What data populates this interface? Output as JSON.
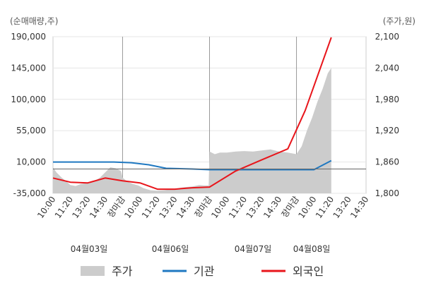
{
  "chart_data": {
    "type": "line",
    "units": {
      "left": "(순매매량,주)",
      "right": "(주가,원)"
    },
    "left_axis": {
      "ticks": [
        "190,000",
        "145,000",
        "100,000",
        "55,000",
        "10,000",
        "-35,000"
      ],
      "min": -35000,
      "max": 190000
    },
    "right_axis": {
      "ticks": [
        "2,100",
        "2,040",
        "1,980",
        "1,920",
        "1,860",
        "1,800"
      ],
      "min": 1800,
      "max": 2100
    },
    "x_labels": [
      {
        "label": "10:00",
        "market_close": false
      },
      {
        "label": "11:20",
        "market_close": false
      },
      {
        "label": "13:20",
        "market_close": false
      },
      {
        "label": "14:30",
        "market_close": false
      },
      {
        "label": "장마감",
        "market_close": true
      },
      {
        "label": "10:00",
        "market_close": false
      },
      {
        "label": "11:20",
        "market_close": false
      },
      {
        "label": "13:20",
        "market_close": false
      },
      {
        "label": "14:30",
        "market_close": false
      },
      {
        "label": "장마감",
        "market_close": true
      },
      {
        "label": "10:00",
        "market_close": false
      },
      {
        "label": "11:20",
        "market_close": false
      },
      {
        "label": "13:20",
        "market_close": false
      },
      {
        "label": "14:30",
        "market_close": false
      },
      {
        "label": "장마감",
        "market_close": true
      },
      {
        "label": "10:00",
        "market_close": false
      },
      {
        "label": "11:20",
        "market_close": false
      },
      {
        "label": "13:20",
        "market_close": false
      },
      {
        "label": "14:30",
        "market_close": false
      }
    ],
    "dates": [
      "04월03일",
      "04월06일",
      "04월07일",
      "04월08일"
    ],
    "grid": true,
    "legend": {
      "position": "bottom"
    },
    "series": [
      {
        "name": "주가",
        "kind": "area",
        "axis": "right",
        "color": "#cccccc",
        "points": [
          [
            0,
            1850
          ],
          [
            0.2,
            1840
          ],
          [
            0.5,
            1830
          ],
          [
            0.8,
            1822
          ],
          [
            1,
            1816
          ],
          [
            1.3,
            1814
          ],
          [
            1.6,
            1818
          ],
          [
            2,
            1820
          ],
          [
            2.4,
            1824
          ],
          [
            2.7,
            1830
          ],
          [
            3,
            1840
          ],
          [
            3.3,
            1850
          ],
          [
            3.6,
            1848
          ],
          [
            3.9,
            1843
          ],
          [
            4.0,
            1830
          ],
          [
            4.3,
            1822
          ],
          [
            4.6,
            1818
          ],
          [
            4.9,
            1815
          ],
          [
            5.2,
            1810
          ],
          [
            5.6,
            1806
          ],
          [
            6,
            1805
          ],
          [
            6.4,
            1806
          ],
          [
            6.8,
            1808
          ],
          [
            7.2,
            1810
          ],
          [
            7.6,
            1812
          ],
          [
            8,
            1813
          ],
          [
            8.4,
            1816
          ],
          [
            8.7,
            1815
          ],
          [
            8.95,
            1815
          ],
          [
            9.0,
            1880
          ],
          [
            9.3,
            1875
          ],
          [
            9.6,
            1878
          ],
          [
            10,
            1878
          ],
          [
            10.5,
            1880
          ],
          [
            11,
            1881
          ],
          [
            11.5,
            1880
          ],
          [
            12,
            1882
          ],
          [
            12.5,
            1884
          ],
          [
            13,
            1880
          ],
          [
            13.5,
            1878
          ],
          [
            14,
            1875
          ],
          [
            14.3,
            1890
          ],
          [
            14.6,
            1920
          ],
          [
            14.9,
            1945
          ],
          [
            15.2,
            1975
          ],
          [
            15.5,
            2000
          ],
          [
            15.8,
            2030
          ],
          [
            16.0,
            2040
          ]
        ]
      },
      {
        "name": "기관",
        "kind": "line",
        "axis": "left",
        "color": "#1f78c1",
        "points": [
          [
            0,
            10000
          ],
          [
            3.5,
            10000
          ],
          [
            4.5,
            9000
          ],
          [
            5.5,
            6000
          ],
          [
            6.5,
            1000
          ],
          [
            8,
            0
          ],
          [
            9,
            -1000
          ],
          [
            14,
            -1000
          ],
          [
            15,
            -1000
          ],
          [
            16,
            12000
          ]
        ]
      },
      {
        "name": "외국인",
        "kind": "line",
        "axis": "left",
        "color": "#e8151b",
        "points": [
          [
            0,
            -13000
          ],
          [
            1,
            -19000
          ],
          [
            2,
            -20000
          ],
          [
            3,
            -13000
          ],
          [
            4,
            -17000
          ],
          [
            5,
            -20000
          ],
          [
            6,
            -29000
          ],
          [
            7,
            -29000
          ],
          [
            8,
            -27000
          ],
          [
            9,
            -26000
          ],
          [
            10.5,
            -3000
          ],
          [
            12,
            13000
          ],
          [
            13.5,
            29000
          ],
          [
            14.5,
            84000
          ],
          [
            16,
            189000
          ]
        ]
      }
    ]
  }
}
